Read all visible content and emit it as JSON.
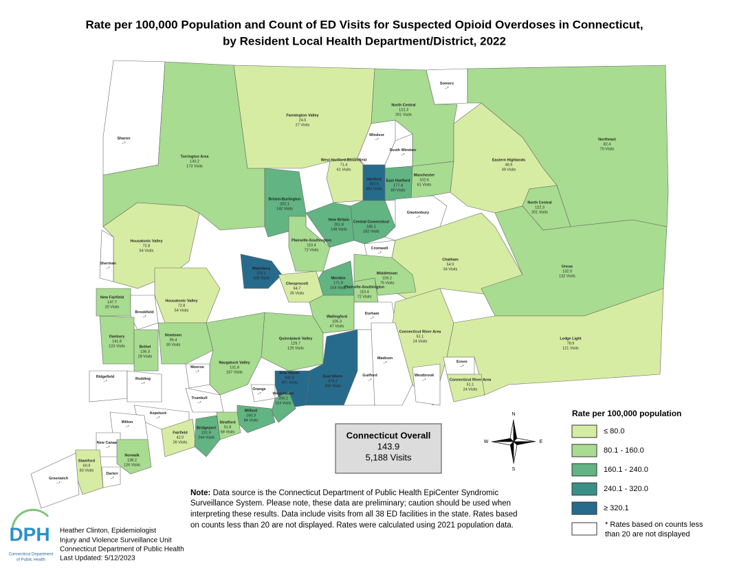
{
  "title": [
    "Rate per 100,000 Population and Count of ED Visits for Suspected Opioid Overdoses in Connecticut,",
    "by Resident Local Health Department/District, 2022"
  ],
  "regions": [
    {
      "name": "Sharon",
      "rate": "–*",
      "color": "#ffffff"
    },
    {
      "name": "Torrington Area",
      "rate": "130.2",
      "visits": "173 Visits",
      "color": "#a8dc90"
    },
    {
      "name": "Farmington Valley",
      "rate": "24.5",
      "visits": "27 Visits",
      "color": "#d6eca2"
    },
    {
      "name": "North Central",
      "rate": "122.3",
      "visits": "201 Visits",
      "color": "#a8dc90"
    },
    {
      "name": "Somers",
      "rate": "–*",
      "color": "#ffffff"
    },
    {
      "name": "Northeast",
      "rate": "82.4",
      "visits": "70 Visits",
      "color": "#a8dc90"
    },
    {
      "name": "Windsor",
      "rate": "–*",
      "color": "#ffffff"
    },
    {
      "name": "South Windsor",
      "rate": "–*",
      "color": "#ffffff"
    },
    {
      "name": "West Hartford-Bloomfield",
      "rate": "71.4",
      "visits": "61 Visits",
      "color": "#d6eca2"
    },
    {
      "name": "Hartford",
      "rate": "400.6",
      "visits": "483 Visits",
      "color": "#276b8c"
    },
    {
      "name": "East Hartford",
      "rate": "177.4",
      "visits": "80 Visits",
      "color": "#62b482"
    },
    {
      "name": "Manchester",
      "rate": "102.6",
      "visits": "61 Visits",
      "color": "#a8dc90"
    },
    {
      "name": "Eastern Highlands",
      "rate": "48.9",
      "visits": "39 Visits",
      "color": "#d6eca2"
    },
    {
      "name": "North Central",
      "rate": "122.3",
      "visits": "201 Visits",
      "color": "#a8dc90"
    },
    {
      "name": "Bristol-Burlington",
      "rate": "202.1",
      "visits": "142 Visits",
      "color": "#62b482"
    },
    {
      "name": "New Britain",
      "rate": "201.8",
      "visits": "149 Visits",
      "color": "#62b482"
    },
    {
      "name": "Central Connecticut",
      "rate": "185.1",
      "visits": "182 Visits",
      "color": "#62b482"
    },
    {
      "name": "Glastonbury",
      "rate": "–*",
      "color": "#ffffff"
    },
    {
      "name": "Plainville-Southington",
      "rate": "110.4",
      "visits": "72 Visits",
      "color": "#a8dc90"
    },
    {
      "name": "Cromwell",
      "rate": "–*",
      "color": "#ffffff"
    },
    {
      "name": "Housatonic Valley",
      "rate": "72.8",
      "visits": "54 Visits",
      "color": "#d6eca2"
    },
    {
      "name": "Sherman",
      "rate": "–*",
      "color": "#ffffff"
    },
    {
      "name": "Waterbury",
      "rate": "376.1",
      "visits": "428 Visits",
      "color": "#276b8c"
    },
    {
      "name": "Chatham",
      "rate": "54.9",
      "visits": "34 Visits",
      "color": "#d6eca2"
    },
    {
      "name": "Uncas",
      "rate": "132.0",
      "visits": "132 Visits",
      "color": "#a8dc90"
    },
    {
      "name": "Meriden",
      "rate": "171.9",
      "visits": "104 Visits",
      "color": "#62b482"
    },
    {
      "name": "Middletown",
      "rate": "159.2",
      "visits": "75 Visits",
      "color": "#a8dc90"
    },
    {
      "name": "Plainville-Southington",
      "rate": "110.4",
      "visits": "72 Visits",
      "color": "#a8dc90"
    },
    {
      "name": "Chesprocott",
      "rate": "64.7",
      "visits": "35 Visits",
      "color": "#d6eca2"
    },
    {
      "name": "New Fairfield",
      "rate": "147.7",
      "visits": "20 Visits",
      "color": "#a8dc90"
    },
    {
      "name": "Brookfield",
      "rate": "–*",
      "color": "#ffffff"
    },
    {
      "name": "Housatonic Valley",
      "rate": "72.8",
      "visits": "54 Visits",
      "color": "#d6eca2"
    },
    {
      "name": "Wallingford",
      "rate": "106.3",
      "visits": "47 Visits",
      "color": "#a8dc90"
    },
    {
      "name": "Durham",
      "rate": "–*",
      "color": "#ffffff"
    },
    {
      "name": "Danbury",
      "rate": "141.8",
      "visits": "123 Visits",
      "color": "#a8dc90"
    },
    {
      "name": "Bethel",
      "rate": "136.3",
      "visits": "28 Visits",
      "color": "#a8dc90"
    },
    {
      "name": "Newtown",
      "rate": "95.4",
      "visits": "30 Visits",
      "color": "#a8dc90"
    },
    {
      "name": "Quinnipiack Valley",
      "rate": "129.7",
      "visits": "129 Visits",
      "color": "#a8dc90"
    },
    {
      "name": "Connecticut River Area",
      "rate": "51.1",
      "visits": "24 Visits",
      "color": "#d6eca2"
    },
    {
      "name": "Ledge Light",
      "rate": "78.9",
      "visits": "121 Visits",
      "color": "#d6eca2"
    },
    {
      "name": "Madison",
      "rate": "–*",
      "color": "#ffffff"
    },
    {
      "name": "Naugatuck Valley",
      "rate": "131.8",
      "visits": "167 Visits",
      "color": "#a8dc90"
    },
    {
      "name": "Monroe",
      "rate": "–*",
      "color": "#ffffff"
    },
    {
      "name": "Ridgefield",
      "rate": "–*",
      "color": "#ffffff"
    },
    {
      "name": "Redding",
      "rate": "–*",
      "color": "#ffffff"
    },
    {
      "name": "New Haven",
      "rate": "442.0",
      "visits": "497 Visits",
      "color": "#276b8c"
    },
    {
      "name": "East Shore",
      "rate": "374.2",
      "visits": "260 Visits",
      "color": "#276b8c"
    },
    {
      "name": "Guilford",
      "rate": "–*",
      "color": "#ffffff"
    },
    {
      "name": "Westbrook",
      "rate": "–*",
      "color": "#ffffff"
    },
    {
      "name": "Essex",
      "rate": "–*",
      "color": "#ffffff"
    },
    {
      "name": "Connecticut River Area",
      "rate": "51.1",
      "visits": "24 Visits",
      "color": "#d6eca2"
    },
    {
      "name": "Orange",
      "rate": "–*",
      "color": "#ffffff"
    },
    {
      "name": "West Haven",
      "rate": "206.2",
      "visits": "114 Visits",
      "color": "#62b482"
    },
    {
      "name": "Trumbull",
      "rate": "–*",
      "color": "#ffffff"
    },
    {
      "name": "Aspetuck",
      "rate": "–*",
      "color": "#ffffff"
    },
    {
      "name": "Milford",
      "rate": "160.3",
      "visits": "84 Visits",
      "color": "#62b482"
    },
    {
      "name": "Wilton",
      "rate": "–*",
      "color": "#ffffff"
    },
    {
      "name": "Stratford",
      "rate": "91.8",
      "visits": "68 Visits",
      "color": "#a8dc90"
    },
    {
      "name": "Fairfield",
      "rate": "42.0",
      "visits": "26 Visits",
      "color": "#d6eca2"
    },
    {
      "name": "Bridgeport",
      "rate": "231.9",
      "visits": "244 Visits",
      "color": "#62b482"
    },
    {
      "name": "New Canaan",
      "rate": "–*",
      "color": "#ffffff"
    },
    {
      "name": "Stamford",
      "rate": "60.9",
      "visits": "83 Visits",
      "color": "#d6eca2"
    },
    {
      "name": "Norwalk",
      "rate": "138.2",
      "visits": "126 Visits",
      "color": "#a8dc90"
    },
    {
      "name": "Darien",
      "rate": "–*",
      "color": "#ffffff"
    },
    {
      "name": "Greenwich",
      "rate": "–*",
      "color": "#ffffff"
    }
  ],
  "overall": {
    "title": "Connecticut Overall",
    "rate": "143.9",
    "visits": "5,188 Visits"
  },
  "legend": {
    "title": "Rate per 100,000 population",
    "items": [
      {
        "label": "≤ 80.0",
        "color": "#d6eca2"
      },
      {
        "label": "80.1 - 160.0",
        "color": "#a8dc90"
      },
      {
        "label": "160.1 - 240.0",
        "color": "#62b482"
      },
      {
        "label": "240.1 - 320.0",
        "color": "#3a8f86"
      },
      {
        "label": "≥ 320.1",
        "color": "#276b8c"
      }
    ],
    "note": [
      "* Rates based on counts less",
      "than 20 are not displayed"
    ]
  },
  "compass": [
    "N",
    "E",
    "S",
    "W"
  ],
  "note": {
    "label": "Note:",
    "lines": [
      " Data source is the Connecticut Department of Public Health EpiCenter Syndromic",
      "Surveillance System. Please note, these data are preliminary; caution should be used when",
      " interpreting these results. Data include visits from all 38 ED facilities in the state. Rates based",
      "on counts less than 20 are not displayed. Rates were calculated using 2021 population data."
    ]
  },
  "logo": {
    "mark": "DPH",
    "caption": [
      "Connecticut Department",
      "of Public Health"
    ]
  },
  "credits": [
    "Heather Clinton, Epidemiologist",
    "Injury and Violence Surveillance Unit",
    "Connecticut Department of Public Health",
    "Last Updated: 5/12/2023"
  ]
}
